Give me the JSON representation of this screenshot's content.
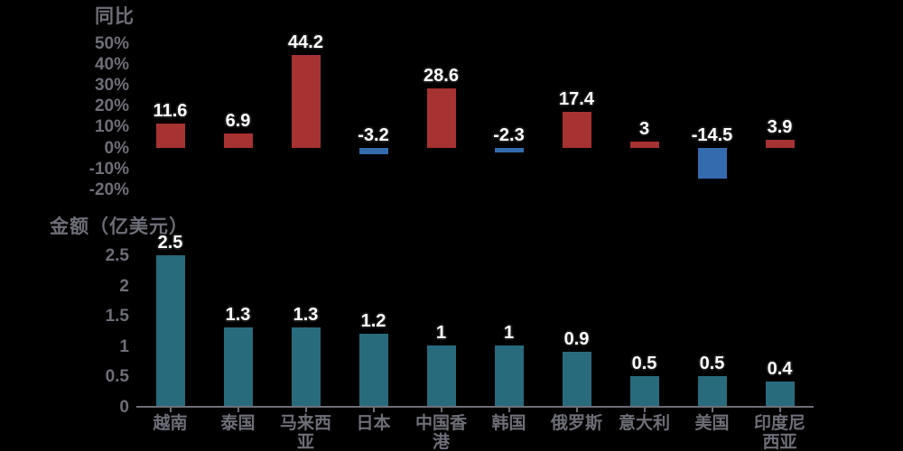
{
  "colors": {
    "background": "#000000",
    "axis_text": "#6E6E78",
    "label_text": "#FFFFFF",
    "label_outline": "#1A1A1A",
    "positive_bar": "#A63231",
    "negative_bar": "#336BAE",
    "amount_bar": "#286B7C"
  },
  "chart_data": [
    {
      "type": "bar",
      "title": "同比",
      "categories": [
        "越南",
        "泰国",
        "马来西亚",
        "日本",
        "中国香港",
        "韩国",
        "俄罗斯",
        "意大利",
        "美国",
        "印度尼西亚"
      ],
      "values": [
        11.6,
        6.9,
        44.2,
        -3.2,
        28.6,
        -2.3,
        17.4,
        3,
        -14.5,
        3.9
      ],
      "value_labels": [
        "11.6",
        "6.9",
        "44.2",
        "-3.2",
        "28.6",
        "-2.3",
        "17.4",
        "3",
        "-14.5",
        "3.9"
      ],
      "ytick_values": [
        50,
        40,
        30,
        20,
        10,
        0,
        -10,
        -20
      ],
      "ytick_labels": [
        "50%",
        "40%",
        "30%",
        "20%",
        "10%",
        "0%",
        "-10%",
        "-20%"
      ],
      "ylim": [
        -22,
        55
      ],
      "ylabel": "同比",
      "xlabel": "",
      "grid": false,
      "legend": "none",
      "positive_color": "#A63231",
      "negative_color": "#336BAE"
    },
    {
      "type": "bar",
      "title": "金额（亿美元）",
      "categories": [
        "越南",
        "泰国",
        "马来西亚",
        "日本",
        "中国香港",
        "韩国",
        "俄罗斯",
        "意大利",
        "美国",
        "印度尼西亚"
      ],
      "category_lines": [
        [
          "越南"
        ],
        [
          "泰国"
        ],
        [
          "马来西",
          "亚"
        ],
        [
          "日本"
        ],
        [
          "中国香",
          "港"
        ],
        [
          "韩国"
        ],
        [
          "俄罗斯"
        ],
        [
          "意大利"
        ],
        [
          "美国"
        ],
        [
          "印度尼",
          "西亚"
        ]
      ],
      "values": [
        2.5,
        1.3,
        1.3,
        1.2,
        1,
        1,
        0.9,
        0.5,
        0.5,
        0.4
      ],
      "value_labels": [
        "2.5",
        "1.3",
        "1.3",
        "1.2",
        "1",
        "1",
        "0.9",
        "0.5",
        "0.5",
        "0.4"
      ],
      "ytick_values": [
        2.5,
        2,
        1.5,
        1,
        0.5,
        0
      ],
      "ytick_labels": [
        "2.5",
        "2",
        "1.5",
        "1",
        "0.5",
        "0"
      ],
      "ylim": [
        0,
        2.9
      ],
      "ylabel": "金额（亿美元）",
      "xlabel": "",
      "grid": false,
      "legend": "none",
      "bar_color": "#286B7C"
    }
  ]
}
